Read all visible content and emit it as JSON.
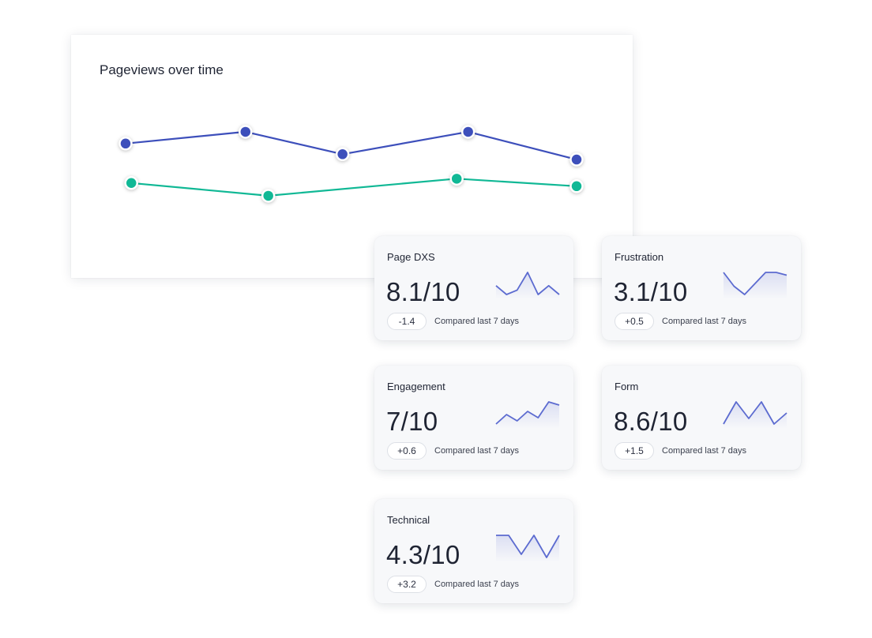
{
  "chart_data": {
    "type": "line",
    "title": "Pageviews over time",
    "grid": false,
    "legend": "none",
    "ylim": [
      0,
      10
    ],
    "series": [
      {
        "color": "#3d4fbb",
        "x": [
          1,
          3.1,
          4.8,
          7,
          8.9
        ],
        "values": [
          7.2,
          8.3,
          6.2,
          8.3,
          5.7
        ]
      },
      {
        "color": "#10b895",
        "x": [
          1.1,
          3.5,
          6.8,
          8.9
        ],
        "values": [
          3.5,
          2.3,
          3.9,
          3.2
        ]
      }
    ]
  },
  "cards": [
    {
      "title": "Page DXS",
      "score": "8.1/10",
      "delta": "-1.4",
      "compare": "Compared last 7 days",
      "trend": [
        6,
        4,
        5,
        9,
        4,
        6,
        4
      ],
      "accent": "#5c6bd0"
    },
    {
      "title": "Frustration",
      "score": "3.1/10",
      "delta": "+0.5",
      "compare": "Compared last 7 days",
      "trend": [
        9,
        4,
        1,
        5,
        9,
        9,
        8
      ],
      "accent": "#5c6bd0"
    },
    {
      "title": "Engagement",
      "score": "7/10",
      "delta": "+0.6",
      "compare": "Compared last 7 days",
      "trend": [
        1,
        4,
        2,
        5,
        3,
        8,
        7
      ],
      "accent": "#5c6bd0"
    },
    {
      "title": "Form",
      "score": "8.6/10",
      "delta": "+1.5",
      "compare": "Compared last 7 days",
      "trend": [
        4,
        8,
        5,
        8,
        4,
        6
      ],
      "accent": "#5c6bd0"
    },
    {
      "title": "Technical",
      "score": "4.3/10",
      "delta": "+3.2",
      "compare": "Compared last 7 days",
      "trend": [
        8,
        8,
        2,
        8,
        1,
        8
      ],
      "accent": "#5c6bd0"
    }
  ]
}
